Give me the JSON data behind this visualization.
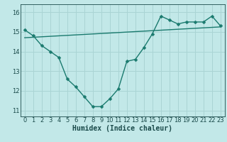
{
  "line1_x": [
    0,
    1,
    2,
    3,
    4,
    5,
    6,
    7,
    8,
    9,
    10,
    11,
    12,
    13,
    14,
    15,
    16,
    17,
    18,
    19,
    20,
    21,
    22,
    23
  ],
  "line1_y": [
    15.1,
    14.8,
    14.3,
    14.0,
    13.7,
    12.6,
    12.2,
    11.7,
    11.2,
    11.2,
    11.6,
    12.1,
    13.5,
    13.6,
    14.2,
    14.9,
    15.8,
    15.6,
    15.4,
    15.5,
    15.5,
    15.5,
    15.8,
    15.3
  ],
  "line2_x": [
    0,
    23
  ],
  "line2_y": [
    14.7,
    15.25
  ],
  "line_color": "#1a7a6e",
  "bg_color": "#c2e8e8",
  "grid_color": "#aad4d4",
  "xlabel": "Humidex (Indice chaleur)",
  "ylim": [
    10.7,
    16.4
  ],
  "xlim": [
    -0.5,
    23.5
  ],
  "yticks": [
    11,
    12,
    13,
    14,
    15,
    16
  ],
  "xticks": [
    0,
    1,
    2,
    3,
    4,
    5,
    6,
    7,
    8,
    9,
    10,
    11,
    12,
    13,
    14,
    15,
    16,
    17,
    18,
    19,
    20,
    21,
    22,
    23
  ],
  "marker": "D",
  "marker_size": 2.5,
  "linewidth": 1.0,
  "xlabel_fontsize": 7,
  "tick_fontsize": 6,
  "tick_color": "#1a4a4a",
  "spine_color": "#1a4a4a"
}
